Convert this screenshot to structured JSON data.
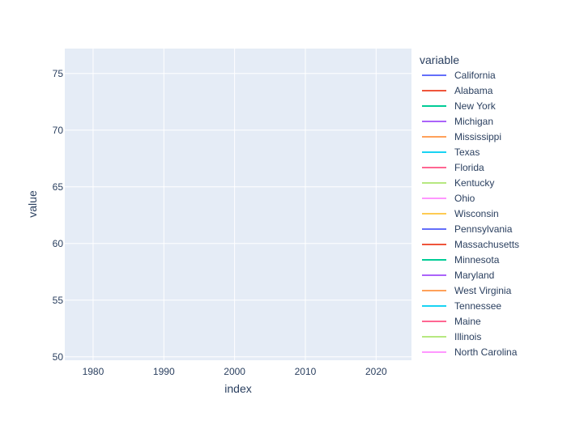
{
  "chart_data": {
    "type": "line",
    "title": "",
    "xlabel": "index",
    "ylabel": "value",
    "xlim": [
      1976,
      2025
    ],
    "ylim": [
      49.7,
      77.2
    ],
    "x_ticks": [
      "1980",
      "1990",
      "2000",
      "2010",
      "2020"
    ],
    "y_ticks": [
      "50",
      "55",
      "60",
      "65",
      "70",
      "75"
    ],
    "grid": true,
    "legend_title": "variable",
    "legend_position": "right",
    "series": [
      {
        "name": "California",
        "color": "#636efa",
        "x": [],
        "values": []
      },
      {
        "name": "Alabama",
        "color": "#EF553B",
        "x": [],
        "values": []
      },
      {
        "name": "New York",
        "color": "#00cc96",
        "x": [],
        "values": []
      },
      {
        "name": "Michigan",
        "color": "#ab63fa",
        "x": [],
        "values": []
      },
      {
        "name": "Mississippi",
        "color": "#FFA15A",
        "x": [],
        "values": []
      },
      {
        "name": "Texas",
        "color": "#19d3f3",
        "x": [],
        "values": []
      },
      {
        "name": "Florida",
        "color": "#FF6692",
        "x": [],
        "values": []
      },
      {
        "name": "Kentucky",
        "color": "#B6E880",
        "x": [],
        "values": []
      },
      {
        "name": "Ohio",
        "color": "#FF97FF",
        "x": [],
        "values": []
      },
      {
        "name": "Wisconsin",
        "color": "#FECB52",
        "x": [],
        "values": []
      },
      {
        "name": "Pennsylvania",
        "color": "#636efa",
        "x": [],
        "values": []
      },
      {
        "name": "Massachusetts",
        "color": "#EF553B",
        "x": [],
        "values": []
      },
      {
        "name": "Minnesota",
        "color": "#00cc96",
        "x": [],
        "values": []
      },
      {
        "name": "Maryland",
        "color": "#ab63fa",
        "x": [],
        "values": []
      },
      {
        "name": "West Virginia",
        "color": "#FFA15A",
        "x": [],
        "values": []
      },
      {
        "name": "Tennessee",
        "color": "#19d3f3",
        "x": [],
        "values": []
      },
      {
        "name": "Maine",
        "color": "#FF6692",
        "x": [],
        "values": []
      },
      {
        "name": "Illinois",
        "color": "#B6E880",
        "x": [],
        "values": []
      },
      {
        "name": "North Carolina",
        "color": "#FF97FF",
        "x": [],
        "values": []
      }
    ]
  }
}
